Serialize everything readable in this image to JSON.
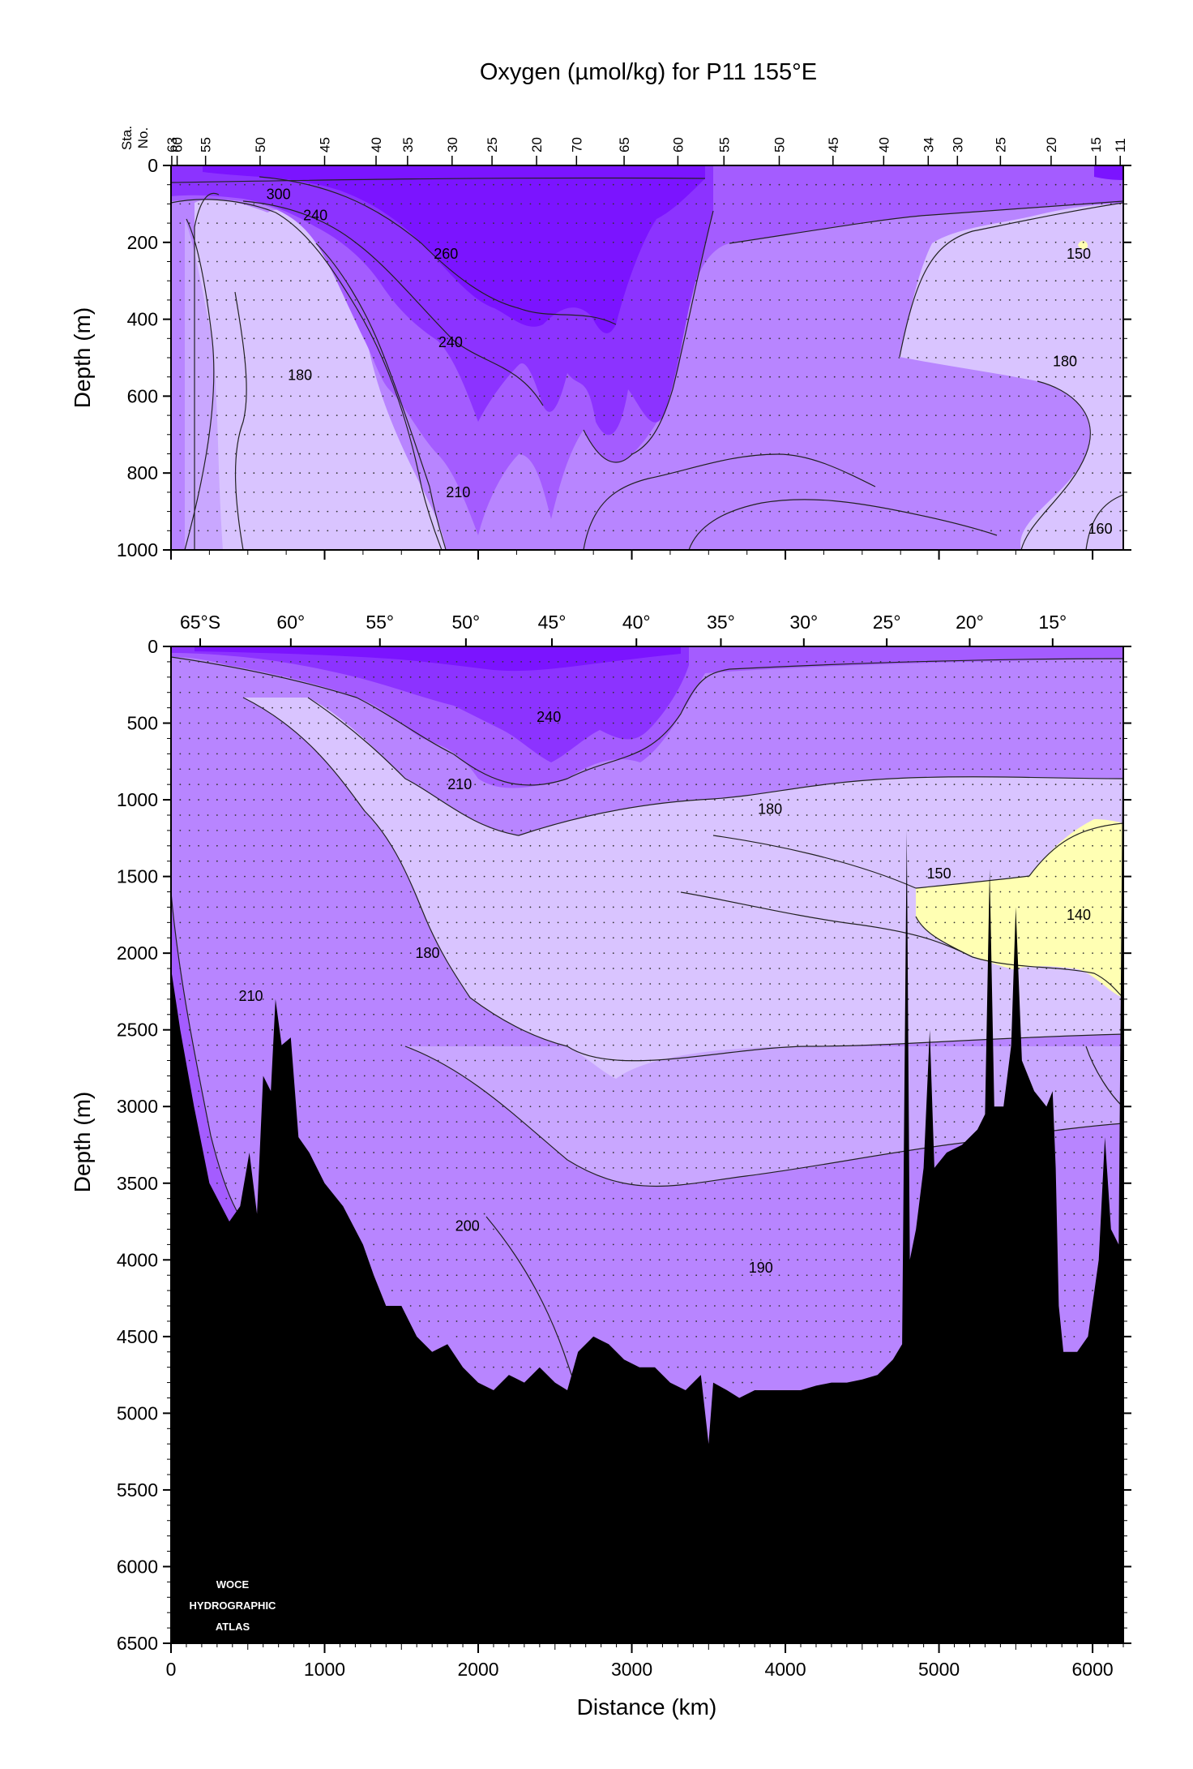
{
  "chart_data": {
    "title": "Oxygen (µmol/kg) for P11 155°E",
    "colors": {
      "level_le_150": "#ffffb3",
      "level_150_180": "#d9c4ff",
      "level_180_190": "#c9a7ff",
      "level_190_210": "#b885ff",
      "level_210_240": "#a45cff",
      "level_240_260": "#8c33ff",
      "level_gt_260": "#7b14ff",
      "bathymetry": "#000000",
      "contour_line": "#222222"
    },
    "panels": [
      {
        "id": "upper",
        "type": "contour",
        "xlabel": "",
        "ylabel": "Depth (m)",
        "ylim": [
          0,
          1000
        ],
        "y_ticks": [
          0,
          200,
          400,
          600,
          800,
          1000
        ],
        "xlim_km": [
          0,
          6200
        ],
        "station_axis_label": [
          "Sta.",
          "No."
        ],
        "station_ticks": [
          {
            "label": "63",
            "km": 5
          },
          {
            "label": "60",
            "km": 40
          },
          {
            "label": "55",
            "km": 225
          },
          {
            "label": "50",
            "km": 580
          },
          {
            "label": "45",
            "km": 1000
          },
          {
            "label": "40",
            "km": 1335
          },
          {
            "label": "35",
            "km": 1540
          },
          {
            "label": "30",
            "km": 1830
          },
          {
            "label": "25",
            "km": 2090
          },
          {
            "label": "20",
            "km": 2380
          },
          {
            "label": "70",
            "km": 2640
          },
          {
            "label": "65",
            "km": 2950
          },
          {
            "label": "60",
            "km": 3300
          },
          {
            "label": "55",
            "km": 3600
          },
          {
            "label": "50",
            "km": 3960
          },
          {
            "label": "45",
            "km": 4310
          },
          {
            "label": "40",
            "km": 4640
          },
          {
            "label": "34",
            "km": 4930
          },
          {
            "label": "30",
            "km": 5120
          },
          {
            "label": "25",
            "km": 5400
          },
          {
            "label": "20",
            "km": 5730
          },
          {
            "label": "15",
            "km": 6020
          },
          {
            "label": "11",
            "km": 6180
          }
        ],
        "contour_labels": [
          {
            "text": "300",
            "x_km": 700,
            "depth": 75
          },
          {
            "text": "240",
            "x_km": 940,
            "depth": 130
          },
          {
            "text": "260",
            "x_km": 1790,
            "depth": 230
          },
          {
            "text": "150",
            "x_km": 5910,
            "depth": 230
          },
          {
            "text": "240",
            "x_km": 1820,
            "depth": 460
          },
          {
            "text": "180",
            "x_km": 840,
            "depth": 545
          },
          {
            "text": "180",
            "x_km": 5820,
            "depth": 510
          },
          {
            "text": "210",
            "x_km": 1870,
            "depth": 850
          },
          {
            "text": "160",
            "x_km": 6050,
            "depth": 945
          }
        ]
      },
      {
        "id": "lower",
        "type": "contour",
        "xlabel": "Distance (km)",
        "ylabel": "Depth (m)",
        "xlim": [
          0,
          6200
        ],
        "ylim": [
          0,
          6500
        ],
        "x_ticks": [
          0,
          1000,
          2000,
          3000,
          4000,
          5000,
          6000
        ],
        "y_ticks": [
          0,
          500,
          1000,
          1500,
          2000,
          2500,
          3000,
          3500,
          4000,
          4500,
          5000,
          5500,
          6000,
          6500
        ],
        "latitude_ticks": [
          {
            "label": "65°S",
            "km": 190
          },
          {
            "label": "60°",
            "km": 780
          },
          {
            "label": "55°",
            "km": 1360
          },
          {
            "label": "50°",
            "km": 1920
          },
          {
            "label": "45°",
            "km": 2480
          },
          {
            "label": "40°",
            "km": 3030
          },
          {
            "label": "35°",
            "km": 3580
          },
          {
            "label": "30°",
            "km": 4120
          },
          {
            "label": "25°",
            "km": 4660
          },
          {
            "label": "20°",
            "km": 5200
          },
          {
            "label": "15°",
            "km": 5740
          }
        ],
        "contour_labels": [
          {
            "text": "240",
            "x_km": 2460,
            "depth": 460
          },
          {
            "text": "210",
            "x_km": 1880,
            "depth": 900
          },
          {
            "text": "180",
            "x_km": 3900,
            "depth": 1060
          },
          {
            "text": "150",
            "x_km": 5000,
            "depth": 1480
          },
          {
            "text": "140",
            "x_km": 5910,
            "depth": 1750
          },
          {
            "text": "180",
            "x_km": 1670,
            "depth": 2000
          },
          {
            "text": "210",
            "x_km": 520,
            "depth": 2280
          },
          {
            "text": "200",
            "x_km": 1930,
            "depth": 3780
          },
          {
            "text": "190",
            "x_km": 3840,
            "depth": 4050
          }
        ],
        "bathymetry_depth_profile": [
          {
            "km": 0,
            "depth": 2100
          },
          {
            "km": 60,
            "depth": 2500
          },
          {
            "km": 150,
            "depth": 3000
          },
          {
            "km": 250,
            "depth": 3500
          },
          {
            "km": 380,
            "depth": 3750
          },
          {
            "km": 450,
            "depth": 3650
          },
          {
            "km": 510,
            "depth": 3300
          },
          {
            "km": 560,
            "depth": 3700
          },
          {
            "km": 600,
            "depth": 2800
          },
          {
            "km": 650,
            "depth": 2900
          },
          {
            "km": 680,
            "depth": 2300
          },
          {
            "km": 720,
            "depth": 2600
          },
          {
            "km": 780,
            "depth": 2550
          },
          {
            "km": 830,
            "depth": 3200
          },
          {
            "km": 900,
            "depth": 3300
          },
          {
            "km": 1000,
            "depth": 3500
          },
          {
            "km": 1120,
            "depth": 3650
          },
          {
            "km": 1250,
            "depth": 3900
          },
          {
            "km": 1320,
            "depth": 4100
          },
          {
            "km": 1400,
            "depth": 4300
          },
          {
            "km": 1500,
            "depth": 4300
          },
          {
            "km": 1600,
            "depth": 4500
          },
          {
            "km": 1700,
            "depth": 4600
          },
          {
            "km": 1800,
            "depth": 4550
          },
          {
            "km": 1900,
            "depth": 4700
          },
          {
            "km": 2000,
            "depth": 4800
          },
          {
            "km": 2100,
            "depth": 4850
          },
          {
            "km": 2200,
            "depth": 4750
          },
          {
            "km": 2300,
            "depth": 4800
          },
          {
            "km": 2400,
            "depth": 4700
          },
          {
            "km": 2500,
            "depth": 4800
          },
          {
            "km": 2580,
            "depth": 4850
          },
          {
            "km": 2650,
            "depth": 4600
          },
          {
            "km": 2750,
            "depth": 4500
          },
          {
            "km": 2850,
            "depth": 4550
          },
          {
            "km": 2950,
            "depth": 4650
          },
          {
            "km": 3050,
            "depth": 4700
          },
          {
            "km": 3150,
            "depth": 4700
          },
          {
            "km": 3250,
            "depth": 4800
          },
          {
            "km": 3350,
            "depth": 4850
          },
          {
            "km": 3450,
            "depth": 4750
          },
          {
            "km": 3500,
            "depth": 5200
          },
          {
            "km": 3530,
            "depth": 4800
          },
          {
            "km": 3620,
            "depth": 4850
          },
          {
            "km": 3700,
            "depth": 4900
          },
          {
            "km": 3800,
            "depth": 4850
          },
          {
            "km": 3900,
            "depth": 4850
          },
          {
            "km": 4000,
            "depth": 4850
          },
          {
            "km": 4100,
            "depth": 4850
          },
          {
            "km": 4200,
            "depth": 4820
          },
          {
            "km": 4300,
            "depth": 4800
          },
          {
            "km": 4400,
            "depth": 4800
          },
          {
            "km": 4500,
            "depth": 4780
          },
          {
            "km": 4600,
            "depth": 4750
          },
          {
            "km": 4700,
            "depth": 4650
          },
          {
            "km": 4760,
            "depth": 4550
          },
          {
            "km": 4790,
            "depth": 1200
          },
          {
            "km": 4810,
            "depth": 4000
          },
          {
            "km": 4850,
            "depth": 3800
          },
          {
            "km": 4900,
            "depth": 3400
          },
          {
            "km": 4940,
            "depth": 2500
          },
          {
            "km": 4970,
            "depth": 3400
          },
          {
            "km": 5050,
            "depth": 3300
          },
          {
            "km": 5150,
            "depth": 3250
          },
          {
            "km": 5250,
            "depth": 3150
          },
          {
            "km": 5300,
            "depth": 3050
          },
          {
            "km": 5330,
            "depth": 1450
          },
          {
            "km": 5360,
            "depth": 3000
          },
          {
            "km": 5420,
            "depth": 3000
          },
          {
            "km": 5470,
            "depth": 2600
          },
          {
            "km": 5500,
            "depth": 1700
          },
          {
            "km": 5540,
            "depth": 2700
          },
          {
            "km": 5620,
            "depth": 2900
          },
          {
            "km": 5700,
            "depth": 3000
          },
          {
            "km": 5740,
            "depth": 2900
          },
          {
            "km": 5760,
            "depth": 3400
          },
          {
            "km": 5780,
            "depth": 4300
          },
          {
            "km": 5810,
            "depth": 4600
          },
          {
            "km": 5900,
            "depth": 4600
          },
          {
            "km": 5970,
            "depth": 4500
          },
          {
            "km": 6040,
            "depth": 4000
          },
          {
            "km": 6080,
            "depth": 3200
          },
          {
            "km": 6120,
            "depth": 3800
          },
          {
            "km": 6170,
            "depth": 3900
          },
          {
            "km": 6190,
            "depth": 1500
          },
          {
            "km": 6200,
            "depth": 0
          }
        ]
      }
    ],
    "logo": [
      "WOCE",
      "HYDROGRAPHIC",
      "ATLAS"
    ]
  }
}
